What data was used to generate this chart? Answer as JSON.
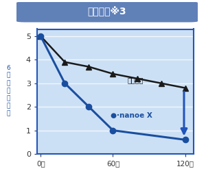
{
  "title": "生乾き臭※3",
  "ylabel_chars": [
    "6",
    "段",
    "階",
    "臭",
    "気",
    "強",
    "度"
  ],
  "xlabel_ticks": [
    "0分",
    "60分",
    "120分"
  ],
  "xlabel_vals": [
    0,
    60,
    120
  ],
  "natural_x": [
    0,
    20,
    40,
    60,
    80,
    100,
    120
  ],
  "natural_y": [
    5.0,
    3.9,
    3.7,
    3.4,
    3.2,
    3.0,
    2.8
  ],
  "nanoex_x": [
    0,
    20,
    40,
    60,
    120
  ],
  "nanoex_y": [
    5.0,
    3.0,
    2.0,
    1.0,
    0.6
  ],
  "natural_label": "自然減衰",
  "nanoex_label": "●·nanoe X",
  "natural_color": "#1a1a1a",
  "nanoex_color": "#1a4fa0",
  "plot_bg": "#cce0f5",
  "outer_bg": "#ffffff",
  "title_bg": "#6080b8",
  "title_text_color": "#ffffff",
  "ylim": [
    0,
    5.3
  ],
  "yticks": [
    0,
    1,
    2,
    3,
    4,
    5
  ],
  "arrow_color": "#2255bb",
  "border_color": "#2255bb",
  "grid_color": "#ffffff"
}
